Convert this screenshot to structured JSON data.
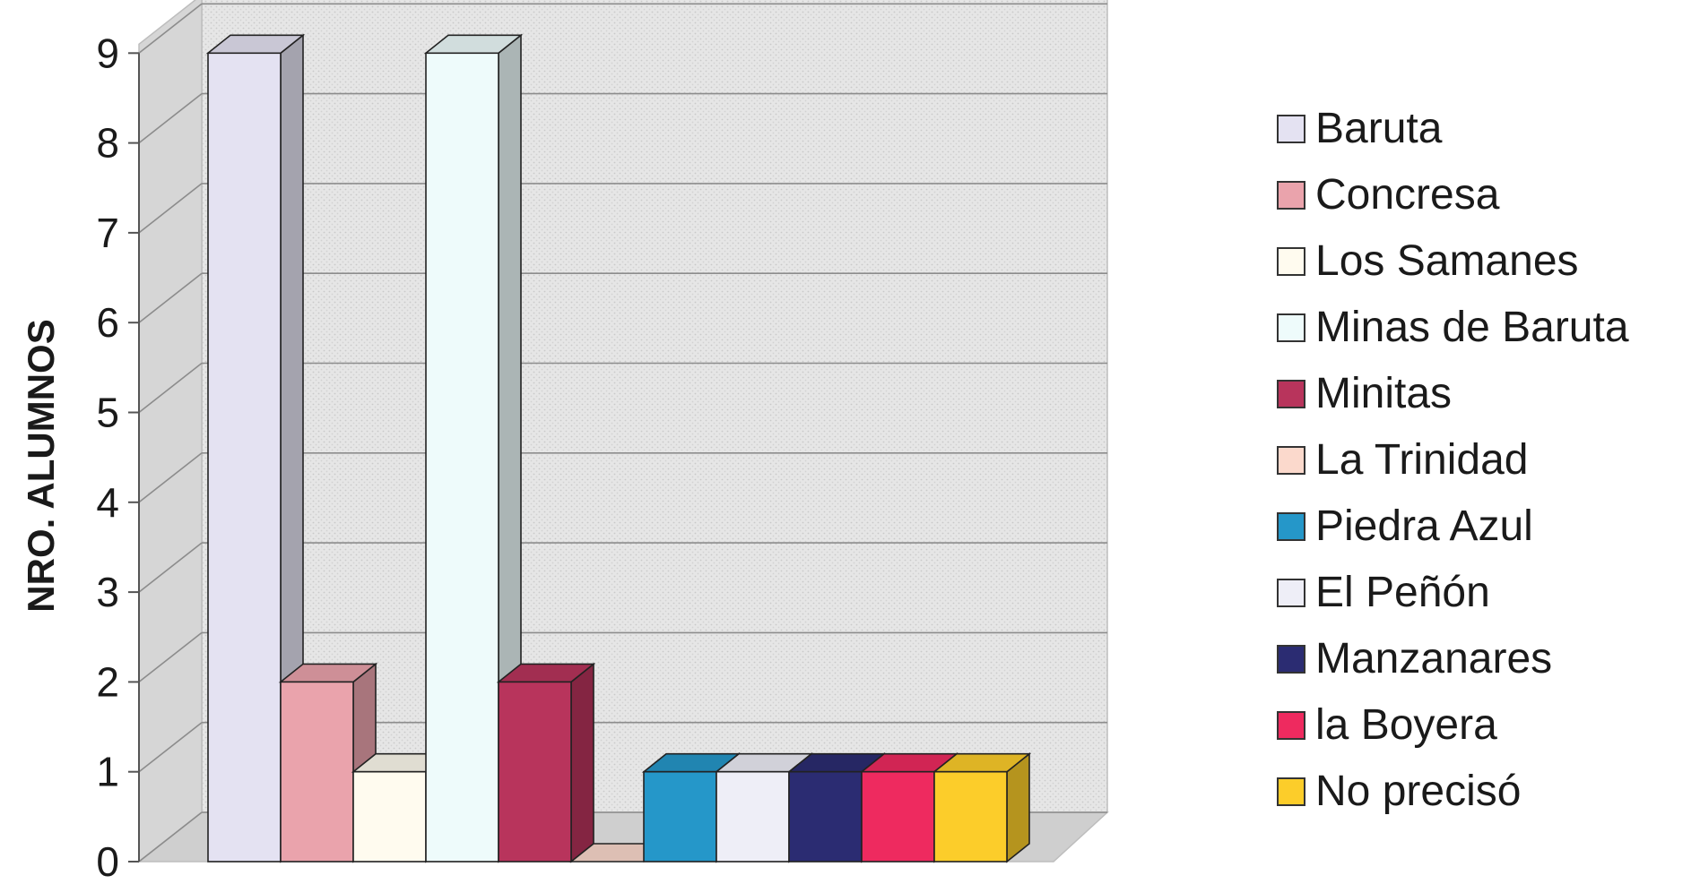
{
  "chart_data": {
    "type": "bar",
    "ylabel": "NRO. ALUMNOS",
    "ylim": [
      0,
      9
    ],
    "yticks": [
      "0",
      "1",
      "2",
      "3",
      "4",
      "5",
      "6",
      "7",
      "8",
      "9"
    ],
    "grid": true,
    "legend_position": "right",
    "series": [
      {
        "name": "Baruta",
        "value": 9,
        "color": "#e4e2f2"
      },
      {
        "name": "Concresa",
        "value": 2,
        "color": "#eaa3ac"
      },
      {
        "name": "Los Samanes",
        "value": 1,
        "color": "#fffbef"
      },
      {
        "name": "Minas de Baruta",
        "value": 9,
        "color": "#eefbfb"
      },
      {
        "name": "Minitas",
        "value": 2,
        "color": "#b8345c"
      },
      {
        "name": "La Trinidad",
        "value": 0,
        "color": "#fbd9cc"
      },
      {
        "name": "Piedra Azul",
        "value": 1,
        "color": "#2597c9"
      },
      {
        "name": "El Peñón",
        "value": 1,
        "color": "#eeeef7"
      },
      {
        "name": "Manzanares",
        "value": 1,
        "color": "#2b2c72"
      },
      {
        "name": "la Boyera",
        "value": 1,
        "color": "#ee2a5f"
      },
      {
        "name": "No precisó",
        "value": 1,
        "color": "#fccd2a"
      }
    ]
  }
}
